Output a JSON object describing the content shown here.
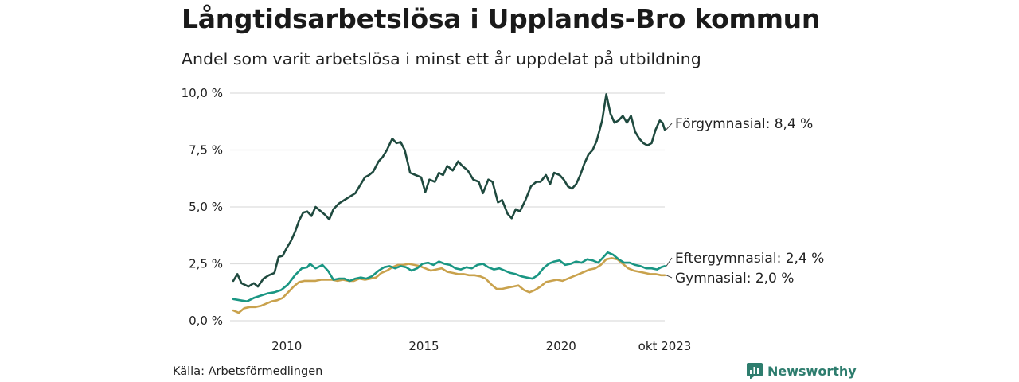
{
  "title": "Långtidsarbetslösa i Upplands-Bro kommun",
  "subtitle": "Andel som varit arbetslösa i minst ett år uppdelat på utbildning",
  "source": "Källa: Arbetsförmedlingen",
  "brand": "Newsworthy",
  "colors": {
    "forgymnasial": "#1f4a3f",
    "eftergymnasial": "#1a9683",
    "gymnasial": "#c9a24d",
    "grid": "#dddddd",
    "brand": "#2e7d6e"
  },
  "chart_data": {
    "type": "line",
    "title": "Långtidsarbetslösa i Upplands-Bro kommun",
    "ylim": [
      0,
      10
    ],
    "y_ticks": [
      {
        "value": 0,
        "label": "0,0 %"
      },
      {
        "value": 2.5,
        "label": "2,5 %"
      },
      {
        "value": 5,
        "label": "5,0 %"
      },
      {
        "value": 7.5,
        "label": "7,5 %"
      },
      {
        "value": 10,
        "label": "10,0 %"
      }
    ],
    "xlim": [
      2008.05,
      2023.78
    ],
    "x_ticks": [
      {
        "value": 2010,
        "label": "2010"
      },
      {
        "value": 2015,
        "label": "2015"
      },
      {
        "value": 2020,
        "label": "2020"
      },
      {
        "value": 2023.78,
        "label": "okt 2023"
      }
    ],
    "series": [
      {
        "name": "Förgymnasial",
        "label": "Förgymnasial: 8,4 %",
        "color": "#1f4a3f",
        "points": [
          [
            2008.05,
            1.75
          ],
          [
            2008.2,
            2.05
          ],
          [
            2008.35,
            1.65
          ],
          [
            2008.6,
            1.5
          ],
          [
            2008.8,
            1.65
          ],
          [
            2008.95,
            1.5
          ],
          [
            2009.15,
            1.85
          ],
          [
            2009.35,
            2.0
          ],
          [
            2009.55,
            2.1
          ],
          [
            2009.7,
            2.8
          ],
          [
            2009.85,
            2.85
          ],
          [
            2010.0,
            3.2
          ],
          [
            2010.15,
            3.5
          ],
          [
            2010.3,
            3.9
          ],
          [
            2010.45,
            4.4
          ],
          [
            2010.6,
            4.75
          ],
          [
            2010.75,
            4.8
          ],
          [
            2010.9,
            4.6
          ],
          [
            2011.05,
            5.0
          ],
          [
            2011.2,
            4.85
          ],
          [
            2011.4,
            4.65
          ],
          [
            2011.55,
            4.45
          ],
          [
            2011.7,
            4.9
          ],
          [
            2011.9,
            5.15
          ],
          [
            2012.1,
            5.3
          ],
          [
            2012.3,
            5.45
          ],
          [
            2012.5,
            5.6
          ],
          [
            2012.7,
            6.0
          ],
          [
            2012.85,
            6.3
          ],
          [
            2013.0,
            6.4
          ],
          [
            2013.15,
            6.55
          ],
          [
            2013.35,
            7.0
          ],
          [
            2013.5,
            7.2
          ],
          [
            2013.65,
            7.5
          ],
          [
            2013.85,
            8.0
          ],
          [
            2014.0,
            7.8
          ],
          [
            2014.15,
            7.85
          ],
          [
            2014.3,
            7.5
          ],
          [
            2014.5,
            6.5
          ],
          [
            2014.7,
            6.4
          ],
          [
            2014.9,
            6.3
          ],
          [
            2015.05,
            5.65
          ],
          [
            2015.2,
            6.2
          ],
          [
            2015.4,
            6.1
          ],
          [
            2015.55,
            6.5
          ],
          [
            2015.7,
            6.4
          ],
          [
            2015.85,
            6.8
          ],
          [
            2016.05,
            6.6
          ],
          [
            2016.25,
            7.0
          ],
          [
            2016.4,
            6.8
          ],
          [
            2016.6,
            6.6
          ],
          [
            2016.8,
            6.2
          ],
          [
            2017.0,
            6.1
          ],
          [
            2017.15,
            5.6
          ],
          [
            2017.35,
            6.2
          ],
          [
            2017.5,
            6.1
          ],
          [
            2017.7,
            5.2
          ],
          [
            2017.85,
            5.3
          ],
          [
            2018.05,
            4.7
          ],
          [
            2018.2,
            4.5
          ],
          [
            2018.35,
            4.9
          ],
          [
            2018.5,
            4.8
          ],
          [
            2018.7,
            5.3
          ],
          [
            2018.9,
            5.9
          ],
          [
            2019.1,
            6.1
          ],
          [
            2019.25,
            6.1
          ],
          [
            2019.45,
            6.4
          ],
          [
            2019.6,
            6.0
          ],
          [
            2019.75,
            6.5
          ],
          [
            2019.95,
            6.4
          ],
          [
            2020.1,
            6.2
          ],
          [
            2020.25,
            5.9
          ],
          [
            2020.4,
            5.8
          ],
          [
            2020.55,
            6.0
          ],
          [
            2020.7,
            6.4
          ],
          [
            2020.85,
            6.9
          ],
          [
            2021.0,
            7.3
          ],
          [
            2021.15,
            7.5
          ],
          [
            2021.3,
            7.9
          ],
          [
            2021.5,
            8.8
          ],
          [
            2021.65,
            9.95
          ],
          [
            2021.8,
            9.1
          ],
          [
            2021.95,
            8.7
          ],
          [
            2022.1,
            8.8
          ],
          [
            2022.25,
            9.0
          ],
          [
            2022.4,
            8.7
          ],
          [
            2022.55,
            9.0
          ],
          [
            2022.7,
            8.3
          ],
          [
            2022.85,
            8.0
          ],
          [
            2023.0,
            7.8
          ],
          [
            2023.15,
            7.7
          ],
          [
            2023.3,
            7.8
          ],
          [
            2023.45,
            8.4
          ],
          [
            2023.6,
            8.8
          ],
          [
            2023.7,
            8.7
          ],
          [
            2023.78,
            8.4
          ]
        ]
      },
      {
        "name": "Eftergymnasial",
        "label": "Eftergymnasial: 2,4 %",
        "color": "#1a9683",
        "points": [
          [
            2008.05,
            0.95
          ],
          [
            2008.3,
            0.9
          ],
          [
            2008.55,
            0.85
          ],
          [
            2008.8,
            1.0
          ],
          [
            2009.05,
            1.1
          ],
          [
            2009.3,
            1.2
          ],
          [
            2009.55,
            1.25
          ],
          [
            2009.8,
            1.35
          ],
          [
            2010.05,
            1.6
          ],
          [
            2010.3,
            2.0
          ],
          [
            2010.55,
            2.3
          ],
          [
            2010.75,
            2.35
          ],
          [
            2010.85,
            2.5
          ],
          [
            2011.05,
            2.3
          ],
          [
            2011.3,
            2.45
          ],
          [
            2011.5,
            2.2
          ],
          [
            2011.7,
            1.8
          ],
          [
            2011.9,
            1.85
          ],
          [
            2012.1,
            1.85
          ],
          [
            2012.3,
            1.75
          ],
          [
            2012.5,
            1.85
          ],
          [
            2012.7,
            1.9
          ],
          [
            2012.9,
            1.85
          ],
          [
            2013.1,
            1.95
          ],
          [
            2013.35,
            2.2
          ],
          [
            2013.55,
            2.35
          ],
          [
            2013.75,
            2.4
          ],
          [
            2013.95,
            2.3
          ],
          [
            2014.15,
            2.4
          ],
          [
            2014.35,
            2.35
          ],
          [
            2014.55,
            2.2
          ],
          [
            2014.75,
            2.3
          ],
          [
            2014.95,
            2.5
          ],
          [
            2015.15,
            2.55
          ],
          [
            2015.35,
            2.45
          ],
          [
            2015.55,
            2.6
          ],
          [
            2015.75,
            2.5
          ],
          [
            2015.95,
            2.45
          ],
          [
            2016.15,
            2.3
          ],
          [
            2016.35,
            2.25
          ],
          [
            2016.55,
            2.35
          ],
          [
            2016.75,
            2.3
          ],
          [
            2016.95,
            2.45
          ],
          [
            2017.15,
            2.5
          ],
          [
            2017.35,
            2.35
          ],
          [
            2017.55,
            2.25
          ],
          [
            2017.75,
            2.3
          ],
          [
            2017.95,
            2.2
          ],
          [
            2018.15,
            2.1
          ],
          [
            2018.35,
            2.05
          ],
          [
            2018.55,
            1.95
          ],
          [
            2018.75,
            1.9
          ],
          [
            2018.95,
            1.85
          ],
          [
            2019.15,
            2.0
          ],
          [
            2019.35,
            2.3
          ],
          [
            2019.55,
            2.5
          ],
          [
            2019.75,
            2.6
          ],
          [
            2019.95,
            2.65
          ],
          [
            2020.15,
            2.45
          ],
          [
            2020.35,
            2.5
          ],
          [
            2020.55,
            2.6
          ],
          [
            2020.75,
            2.55
          ],
          [
            2020.95,
            2.7
          ],
          [
            2021.15,
            2.65
          ],
          [
            2021.35,
            2.55
          ],
          [
            2021.55,
            2.8
          ],
          [
            2021.7,
            3.0
          ],
          [
            2021.9,
            2.9
          ],
          [
            2022.1,
            2.7
          ],
          [
            2022.3,
            2.55
          ],
          [
            2022.5,
            2.55
          ],
          [
            2022.7,
            2.45
          ],
          [
            2022.9,
            2.4
          ],
          [
            2023.1,
            2.3
          ],
          [
            2023.3,
            2.3
          ],
          [
            2023.5,
            2.25
          ],
          [
            2023.65,
            2.35
          ],
          [
            2023.78,
            2.4
          ]
        ]
      },
      {
        "name": "Gymnasial",
        "label": "Gymnasial: 2,0 %",
        "color": "#c9a24d",
        "points": [
          [
            2008.05,
            0.45
          ],
          [
            2008.25,
            0.35
          ],
          [
            2008.45,
            0.55
          ],
          [
            2008.65,
            0.6
          ],
          [
            2008.85,
            0.6
          ],
          [
            2009.05,
            0.65
          ],
          [
            2009.25,
            0.75
          ],
          [
            2009.45,
            0.85
          ],
          [
            2009.65,
            0.9
          ],
          [
            2009.85,
            1.0
          ],
          [
            2010.05,
            1.25
          ],
          [
            2010.25,
            1.5
          ],
          [
            2010.45,
            1.7
          ],
          [
            2010.65,
            1.75
          ],
          [
            2010.85,
            1.75
          ],
          [
            2011.05,
            1.75
          ],
          [
            2011.25,
            1.8
          ],
          [
            2011.45,
            1.8
          ],
          [
            2011.65,
            1.8
          ],
          [
            2011.85,
            1.75
          ],
          [
            2012.05,
            1.8
          ],
          [
            2012.25,
            1.75
          ],
          [
            2012.45,
            1.75
          ],
          [
            2012.65,
            1.85
          ],
          [
            2012.85,
            1.8
          ],
          [
            2013.05,
            1.85
          ],
          [
            2013.25,
            1.9
          ],
          [
            2013.45,
            2.1
          ],
          [
            2013.65,
            2.2
          ],
          [
            2013.85,
            2.35
          ],
          [
            2014.05,
            2.45
          ],
          [
            2014.25,
            2.45
          ],
          [
            2014.45,
            2.5
          ],
          [
            2014.65,
            2.45
          ],
          [
            2014.85,
            2.4
          ],
          [
            2015.05,
            2.3
          ],
          [
            2015.25,
            2.2
          ],
          [
            2015.45,
            2.25
          ],
          [
            2015.65,
            2.3
          ],
          [
            2015.85,
            2.15
          ],
          [
            2016.05,
            2.1
          ],
          [
            2016.25,
            2.05
          ],
          [
            2016.45,
            2.05
          ],
          [
            2016.65,
            2.0
          ],
          [
            2016.85,
            2.0
          ],
          [
            2017.05,
            1.95
          ],
          [
            2017.25,
            1.85
          ],
          [
            2017.45,
            1.6
          ],
          [
            2017.65,
            1.4
          ],
          [
            2017.85,
            1.4
          ],
          [
            2018.05,
            1.45
          ],
          [
            2018.25,
            1.5
          ],
          [
            2018.45,
            1.55
          ],
          [
            2018.65,
            1.35
          ],
          [
            2018.85,
            1.25
          ],
          [
            2019.05,
            1.35
          ],
          [
            2019.25,
            1.5
          ],
          [
            2019.45,
            1.7
          ],
          [
            2019.65,
            1.75
          ],
          [
            2019.85,
            1.8
          ],
          [
            2020.05,
            1.75
          ],
          [
            2020.25,
            1.85
          ],
          [
            2020.45,
            1.95
          ],
          [
            2020.65,
            2.05
          ],
          [
            2020.85,
            2.15
          ],
          [
            2021.05,
            2.25
          ],
          [
            2021.25,
            2.3
          ],
          [
            2021.45,
            2.45
          ],
          [
            2021.65,
            2.7
          ],
          [
            2021.85,
            2.75
          ],
          [
            2022.05,
            2.7
          ],
          [
            2022.25,
            2.5
          ],
          [
            2022.45,
            2.3
          ],
          [
            2022.65,
            2.2
          ],
          [
            2022.85,
            2.15
          ],
          [
            2023.05,
            2.1
          ],
          [
            2023.25,
            2.05
          ],
          [
            2023.45,
            2.05
          ],
          [
            2023.65,
            2.0
          ],
          [
            2023.78,
            2.0
          ]
        ]
      }
    ]
  }
}
